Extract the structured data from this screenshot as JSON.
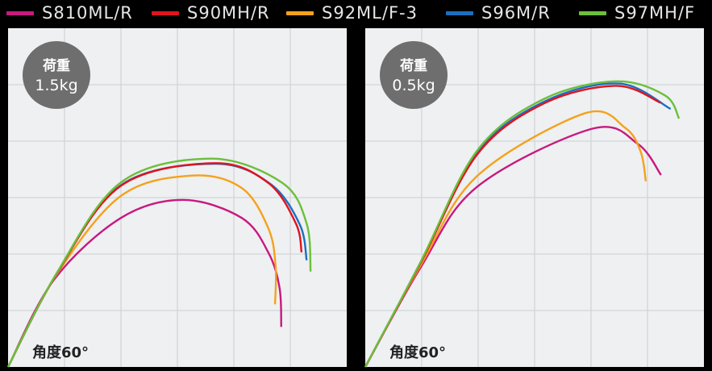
{
  "legend": [
    {
      "name": "S810ML/R",
      "color": "#c8197f"
    },
    {
      "name": "S90MH/R",
      "color": "#e0141e"
    },
    {
      "name": "S92ML/F-3",
      "color": "#f5a11c"
    },
    {
      "name": "S96M/R",
      "color": "#1c6fc0"
    },
    {
      "name": "S97MH/F",
      "color": "#6cbf3a"
    }
  ],
  "chart_data": [
    {
      "type": "line",
      "badge_line1": "荷重",
      "badge_line2": "1.5kg",
      "angle_label": "角度60°",
      "xlim": [
        0,
        6
      ],
      "ylim": [
        0,
        6
      ],
      "grid": true,
      "series": [
        {
          "name": "S810ML/R",
          "color": "#c8197f",
          "points": [
            [
              0,
              0
            ],
            [
              0.81,
              1.54
            ],
            [
              2.0,
              2.64
            ],
            [
              3.1,
              2.96
            ],
            [
              4.14,
              2.64
            ],
            [
              4.61,
              2.03
            ],
            [
              4.81,
              1.4
            ],
            [
              4.84,
              0.71
            ]
          ]
        },
        {
          "name": "S92ML/F-3",
          "color": "#f5a11c",
          "points": [
            [
              0,
              0
            ],
            [
              0.85,
              1.62
            ],
            [
              2.0,
              3.03
            ],
            [
              3.26,
              3.39
            ],
            [
              4.14,
              3.17
            ],
            [
              4.61,
              2.46
            ],
            [
              4.74,
              1.79
            ],
            [
              4.73,
              1.11
            ]
          ]
        },
        {
          "name": "S96M/R",
          "color": "#1c6fc0",
          "points": [
            [
              0,
              0
            ],
            [
              0.86,
              1.65
            ],
            [
              2.0,
              3.22
            ],
            [
              3.67,
              3.6
            ],
            [
              4.65,
              3.24
            ],
            [
              5.17,
              2.52
            ],
            [
              5.29,
              1.89
            ]
          ]
        },
        {
          "name": "S90MH/R",
          "color": "#e0141e",
          "points": [
            [
              0,
              0
            ],
            [
              0.86,
              1.65
            ],
            [
              2.0,
              3.21
            ],
            [
              3.67,
              3.61
            ],
            [
              4.61,
              3.26
            ],
            [
              5.1,
              2.54
            ],
            [
              5.2,
              2.03
            ]
          ]
        },
        {
          "name": "S97MH/F",
          "color": "#6cbf3a",
          "points": [
            [
              0,
              0
            ],
            [
              0.86,
              1.66
            ],
            [
              2.0,
              3.27
            ],
            [
              3.61,
              3.69
            ],
            [
              4.86,
              3.26
            ],
            [
              5.29,
              2.54
            ],
            [
              5.36,
              1.69
            ]
          ]
        }
      ]
    },
    {
      "type": "line",
      "badge_line1": "荷重",
      "badge_line2": "0.5kg",
      "angle_label": "角度60°",
      "xlim": [
        0,
        6
      ],
      "ylim": [
        0,
        6
      ],
      "grid": true,
      "series": [
        {
          "name": "S810ML/R",
          "color": "#c8197f",
          "points": [
            [
              0,
              0
            ],
            [
              0.98,
              1.76
            ],
            [
              1.98,
              3.19
            ],
            [
              4.02,
              4.22
            ],
            [
              4.83,
              3.95
            ],
            [
              5.24,
              3.4
            ]
          ]
        },
        {
          "name": "S92ML/F-3",
          "color": "#f5a11c",
          "points": [
            [
              0,
              0
            ],
            [
              0.98,
              1.8
            ],
            [
              1.98,
              3.38
            ],
            [
              3.88,
              4.49
            ],
            [
              4.6,
              4.24
            ],
            [
              4.88,
              3.81
            ],
            [
              4.97,
              3.29
            ]
          ]
        },
        {
          "name": "S96M/R",
          "color": "#1c6fc0",
          "points": [
            [
              0,
              0
            ],
            [
              0.98,
              1.85
            ],
            [
              1.98,
              3.79
            ],
            [
              3.17,
              4.7
            ],
            [
              4.5,
              5.02
            ],
            [
              5.41,
              4.57
            ]
          ]
        },
        {
          "name": "S90MH/R",
          "color": "#e0141e",
          "points": [
            [
              0,
              0
            ],
            [
              0.98,
              1.84
            ],
            [
              1.98,
              3.76
            ],
            [
              3.17,
              4.67
            ],
            [
              4.45,
              4.98
            ],
            [
              5.23,
              4.68
            ]
          ]
        },
        {
          "name": "S97MH/F",
          "color": "#6cbf3a",
          "points": [
            [
              0,
              0
            ],
            [
              0.98,
              1.86
            ],
            [
              1.98,
              3.83
            ],
            [
              3.17,
              4.75
            ],
            [
              4.45,
              5.06
            ],
            [
              5.31,
              4.81
            ],
            [
              5.56,
              4.4
            ]
          ]
        }
      ]
    }
  ]
}
